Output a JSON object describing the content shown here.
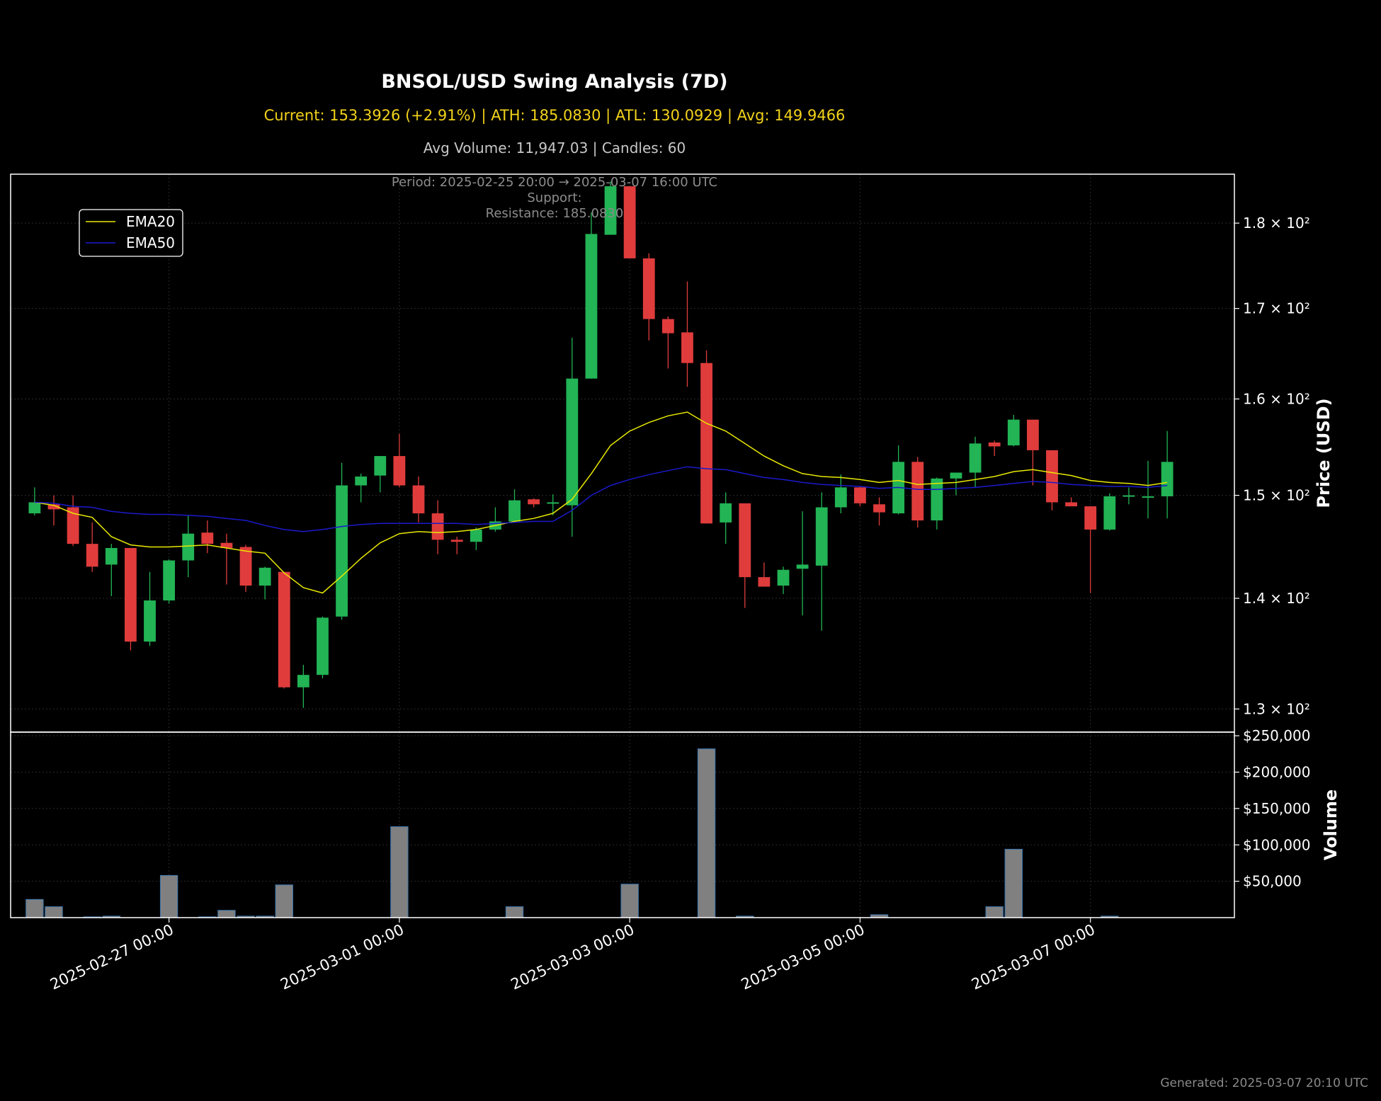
{
  "chart_data": {
    "type": "candlestick",
    "title": "BNSOL/USD Swing Analysis (7D)",
    "subtitle": "Current: 153.3926 (+2.91%) | ATH: 185.0830 | ATL: 130.0929 | Avg: 149.9466",
    "subtitle2": "Avg Volume: 11,947.03 | Candles: 60",
    "annotation": [
      "Period: 2025-02-25 20:00 → 2025-03-07 16:00 UTC",
      "Support:",
      "Resistance: 185.0830"
    ],
    "footer": "Generated: 2025-03-07 20:10 UTC",
    "ylabel": "Price (USD)",
    "volume_label": "Volume",
    "y_scale": "log",
    "ylim": [
      128,
      186
    ],
    "y_ticks": [
      130,
      140,
      150,
      160,
      170,
      180
    ],
    "y_tick_labels": [
      "1.3 × 10²",
      "1.4 × 10²",
      "1.5 × 10²",
      "1.6 × 10²",
      "1.7 × 10²",
      "1.8 × 10²"
    ],
    "volume_ylim": [
      0,
      255000
    ],
    "volume_ticks": [
      50000,
      100000,
      150000,
      200000,
      250000
    ],
    "volume_tick_labels": [
      "$50,000",
      "$100,000",
      "$150,000",
      "$200,000",
      "$250,000"
    ],
    "x_range": [
      "2025-02-25 15:00",
      "2025-03-08 06:00"
    ],
    "x_ticks": [
      "2025-02-27 00:00",
      "2025-03-01 00:00",
      "2025-03-03 00:00",
      "2025-03-05 00:00",
      "2025-03-07 00:00"
    ],
    "legend": [
      "EMA20",
      "EMA50"
    ],
    "legend_position": "upper-left",
    "grid": true,
    "colors": {
      "up": "#22b455",
      "down": "#e03c3c",
      "ema20": "#e8e800",
      "ema50": "#1a1acc",
      "volume": "#808080",
      "volume_edge": "#3a76b0"
    },
    "first_candle": "2025-02-25 20:00",
    "candle_interval_hours": 4,
    "candles": [
      {
        "o": 148.2,
        "h": 150.8,
        "l": 148.0,
        "c": 149.3,
        "v": 25000
      },
      {
        "o": 149.1,
        "h": 150.0,
        "l": 147.0,
        "c": 148.6,
        "v": 15000
      },
      {
        "o": 148.8,
        "h": 150.0,
        "l": 145.0,
        "c": 145.2,
        "v": 0
      },
      {
        "o": 145.2,
        "h": 147.3,
        "l": 142.5,
        "c": 143.0,
        "v": 1000
      },
      {
        "o": 143.2,
        "h": 145.2,
        "l": 140.2,
        "c": 144.8,
        "v": 2000
      },
      {
        "o": 144.8,
        "h": 144.8,
        "l": 135.2,
        "c": 136.0,
        "v": 0
      },
      {
        "o": 136.0,
        "h": 142.5,
        "l": 135.6,
        "c": 139.8,
        "v": 0
      },
      {
        "o": 139.8,
        "h": 143.7,
        "l": 139.5,
        "c": 143.6,
        "v": 58000
      },
      {
        "o": 143.6,
        "h": 148.0,
        "l": 142.0,
        "c": 146.2,
        "v": 0
      },
      {
        "o": 146.3,
        "h": 147.5,
        "l": 144.3,
        "c": 145.2,
        "v": 1000
      },
      {
        "o": 145.3,
        "h": 146.2,
        "l": 141.3,
        "c": 144.8,
        "v": 10000
      },
      {
        "o": 144.9,
        "h": 145.1,
        "l": 140.6,
        "c": 141.2,
        "v": 2000
      },
      {
        "o": 141.2,
        "h": 143.0,
        "l": 139.9,
        "c": 142.9,
        "v": 2000
      },
      {
        "o": 142.5,
        "h": 142.5,
        "l": 131.8,
        "c": 131.9,
        "v": 45000
      },
      {
        "o": 131.9,
        "h": 133.9,
        "l": 130.1,
        "c": 133.0,
        "v": 0
      },
      {
        "o": 133.0,
        "h": 138.3,
        "l": 132.7,
        "c": 138.2,
        "v": 0
      },
      {
        "o": 138.3,
        "h": 153.3,
        "l": 138.0,
        "c": 151.0,
        "v": 0
      },
      {
        "o": 151.0,
        "h": 152.2,
        "l": 149.3,
        "c": 151.9,
        "v": 0
      },
      {
        "o": 152.0,
        "h": 154.0,
        "l": 150.3,
        "c": 154.0,
        "v": 0
      },
      {
        "o": 154.0,
        "h": 156.3,
        "l": 150.8,
        "c": 151.0,
        "v": 125000
      },
      {
        "o": 151.0,
        "h": 151.9,
        "l": 147.3,
        "c": 148.2,
        "v": 0
      },
      {
        "o": 148.2,
        "h": 149.5,
        "l": 144.2,
        "c": 145.6,
        "v": 0
      },
      {
        "o": 145.6,
        "h": 145.9,
        "l": 144.2,
        "c": 145.4,
        "v": 0
      },
      {
        "o": 145.4,
        "h": 146.8,
        "l": 144.6,
        "c": 146.6,
        "v": 0
      },
      {
        "o": 146.6,
        "h": 148.8,
        "l": 146.4,
        "c": 147.4,
        "v": 0
      },
      {
        "o": 147.4,
        "h": 150.6,
        "l": 147.3,
        "c": 149.5,
        "v": 15000
      },
      {
        "o": 149.6,
        "h": 149.7,
        "l": 148.8,
        "c": 149.1,
        "v": 0
      },
      {
        "o": 149.2,
        "h": 150.1,
        "l": 148.0,
        "c": 149.3,
        "v": 0
      },
      {
        "o": 149.0,
        "h": 166.7,
        "l": 145.9,
        "c": 162.2,
        "v": 0
      },
      {
        "o": 162.2,
        "h": 181.3,
        "l": 162.2,
        "c": 178.7,
        "v": 0
      },
      {
        "o": 178.6,
        "h": 185.1,
        "l": 178.6,
        "c": 184.5,
        "v": 0
      },
      {
        "o": 184.5,
        "h": 184.5,
        "l": 175.8,
        "c": 175.8,
        "v": 46000
      },
      {
        "o": 175.8,
        "h": 176.4,
        "l": 166.4,
        "c": 168.8,
        "v": 0
      },
      {
        "o": 168.8,
        "h": 169.1,
        "l": 163.3,
        "c": 167.2,
        "v": 0
      },
      {
        "o": 167.3,
        "h": 173.1,
        "l": 161.3,
        "c": 163.9,
        "v": 0
      },
      {
        "o": 163.9,
        "h": 165.3,
        "l": 147.2,
        "c": 147.2,
        "v": 232000
      },
      {
        "o": 147.3,
        "h": 150.3,
        "l": 145.2,
        "c": 149.2,
        "v": 0
      },
      {
        "o": 149.2,
        "h": 149.2,
        "l": 139.1,
        "c": 142.0,
        "v": 2000
      },
      {
        "o": 142.0,
        "h": 143.4,
        "l": 141.1,
        "c": 141.1,
        "v": 0
      },
      {
        "o": 141.2,
        "h": 143.0,
        "l": 140.4,
        "c": 142.7,
        "v": 0
      },
      {
        "o": 142.8,
        "h": 148.4,
        "l": 138.4,
        "c": 143.2,
        "v": 0
      },
      {
        "o": 143.1,
        "h": 150.3,
        "l": 137.0,
        "c": 148.8,
        "v": 0
      },
      {
        "o": 148.8,
        "h": 152.1,
        "l": 148.2,
        "c": 150.8,
        "v": 0
      },
      {
        "o": 150.8,
        "h": 150.9,
        "l": 148.9,
        "c": 149.2,
        "v": 0
      },
      {
        "o": 149.1,
        "h": 149.8,
        "l": 147.0,
        "c": 148.3,
        "v": 4000
      },
      {
        "o": 148.2,
        "h": 155.1,
        "l": 148.1,
        "c": 153.4,
        "v": 0
      },
      {
        "o": 153.4,
        "h": 153.9,
        "l": 146.8,
        "c": 147.5,
        "v": 0
      },
      {
        "o": 147.5,
        "h": 151.8,
        "l": 146.6,
        "c": 151.7,
        "v": 0
      },
      {
        "o": 151.7,
        "h": 152.3,
        "l": 150.0,
        "c": 152.3,
        "v": 0
      },
      {
        "o": 152.3,
        "h": 156.0,
        "l": 150.8,
        "c": 155.3,
        "v": 0
      },
      {
        "o": 155.4,
        "h": 155.6,
        "l": 154.0,
        "c": 155.0,
        "v": 15000
      },
      {
        "o": 155.1,
        "h": 158.3,
        "l": 155.0,
        "c": 157.8,
        "v": 94000
      },
      {
        "o": 157.8,
        "h": 157.8,
        "l": 151.0,
        "c": 154.6,
        "v": 0
      },
      {
        "o": 154.6,
        "h": 154.6,
        "l": 148.5,
        "c": 149.3,
        "v": 0
      },
      {
        "o": 149.3,
        "h": 149.8,
        "l": 148.9,
        "c": 148.9,
        "v": 0
      },
      {
        "o": 148.9,
        "h": 148.9,
        "l": 140.5,
        "c": 146.6,
        "v": 0
      },
      {
        "o": 146.6,
        "h": 150.2,
        "l": 146.5,
        "c": 149.9,
        "v": 2000
      },
      {
        "o": 149.9,
        "h": 150.8,
        "l": 149.1,
        "c": 150.0,
        "v": 0
      },
      {
        "o": 149.9,
        "h": 153.5,
        "l": 147.7,
        "c": 149.9,
        "v": 0
      },
      {
        "o": 149.9,
        "h": 156.6,
        "l": 147.7,
        "c": 153.4,
        "v": 0
      }
    ],
    "ema20": [
      149.3,
      149.0,
      148.2,
      147.8,
      145.9,
      145.1,
      144.9,
      144.9,
      145.0,
      145.1,
      144.8,
      144.5,
      144.3,
      142.4,
      141.0,
      140.5,
      142.1,
      143.8,
      145.3,
      146.2,
      146.4,
      146.3,
      146.4,
      146.6,
      147.0,
      147.4,
      147.7,
      148.2,
      149.6,
      152.2,
      155.1,
      156.6,
      157.5,
      158.2,
      158.6,
      157.4,
      156.6,
      155.3,
      154.0,
      153.0,
      152.2,
      151.9,
      151.8,
      151.6,
      151.3,
      151.5,
      151.1,
      151.2,
      151.3,
      151.6,
      151.9,
      152.4,
      152.6,
      152.3,
      152.0,
      151.5,
      151.3,
      151.2,
      151.0,
      151.3
    ],
    "ema50": [
      149.3,
      149.2,
      148.9,
      148.8,
      148.4,
      148.2,
      148.1,
      148.1,
      148.0,
      147.9,
      147.7,
      147.5,
      147.0,
      146.6,
      146.4,
      146.6,
      146.9,
      147.1,
      147.2,
      147.2,
      147.2,
      147.2,
      147.2,
      147.1,
      147.2,
      147.3,
      147.4,
      147.4,
      148.5,
      150.0,
      151.0,
      151.6,
      152.1,
      152.5,
      152.9,
      152.7,
      152.6,
      152.2,
      151.8,
      151.6,
      151.3,
      151.1,
      151.0,
      150.9,
      150.7,
      150.8,
      150.6,
      150.6,
      150.7,
      150.8,
      151.0,
      151.2,
      151.4,
      151.3,
      151.1,
      151.0,
      150.9,
      150.9,
      150.8,
      151.0
    ]
  }
}
